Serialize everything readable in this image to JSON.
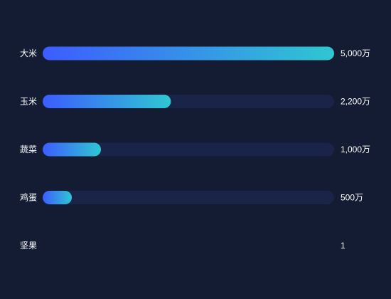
{
  "chart_data": {
    "type": "bar",
    "orientation": "horizontal",
    "categories": [
      "大米",
      "玉米",
      "蔬菜",
      "鸡蛋",
      "坚果"
    ],
    "values": [
      5000,
      2200,
      1000,
      500,
      1
    ],
    "value_labels": [
      "5,000万",
      "2,200万",
      "1,000万",
      "500万",
      "1"
    ],
    "xlim": [
      0,
      5000
    ],
    "grid": false,
    "legend": "none"
  },
  "colors": {
    "background": "#141c34",
    "track": "#1a2348",
    "gradient_start": "#3d5cff",
    "gradient_end": "#2fc7d1",
    "text": "#ffffff"
  }
}
